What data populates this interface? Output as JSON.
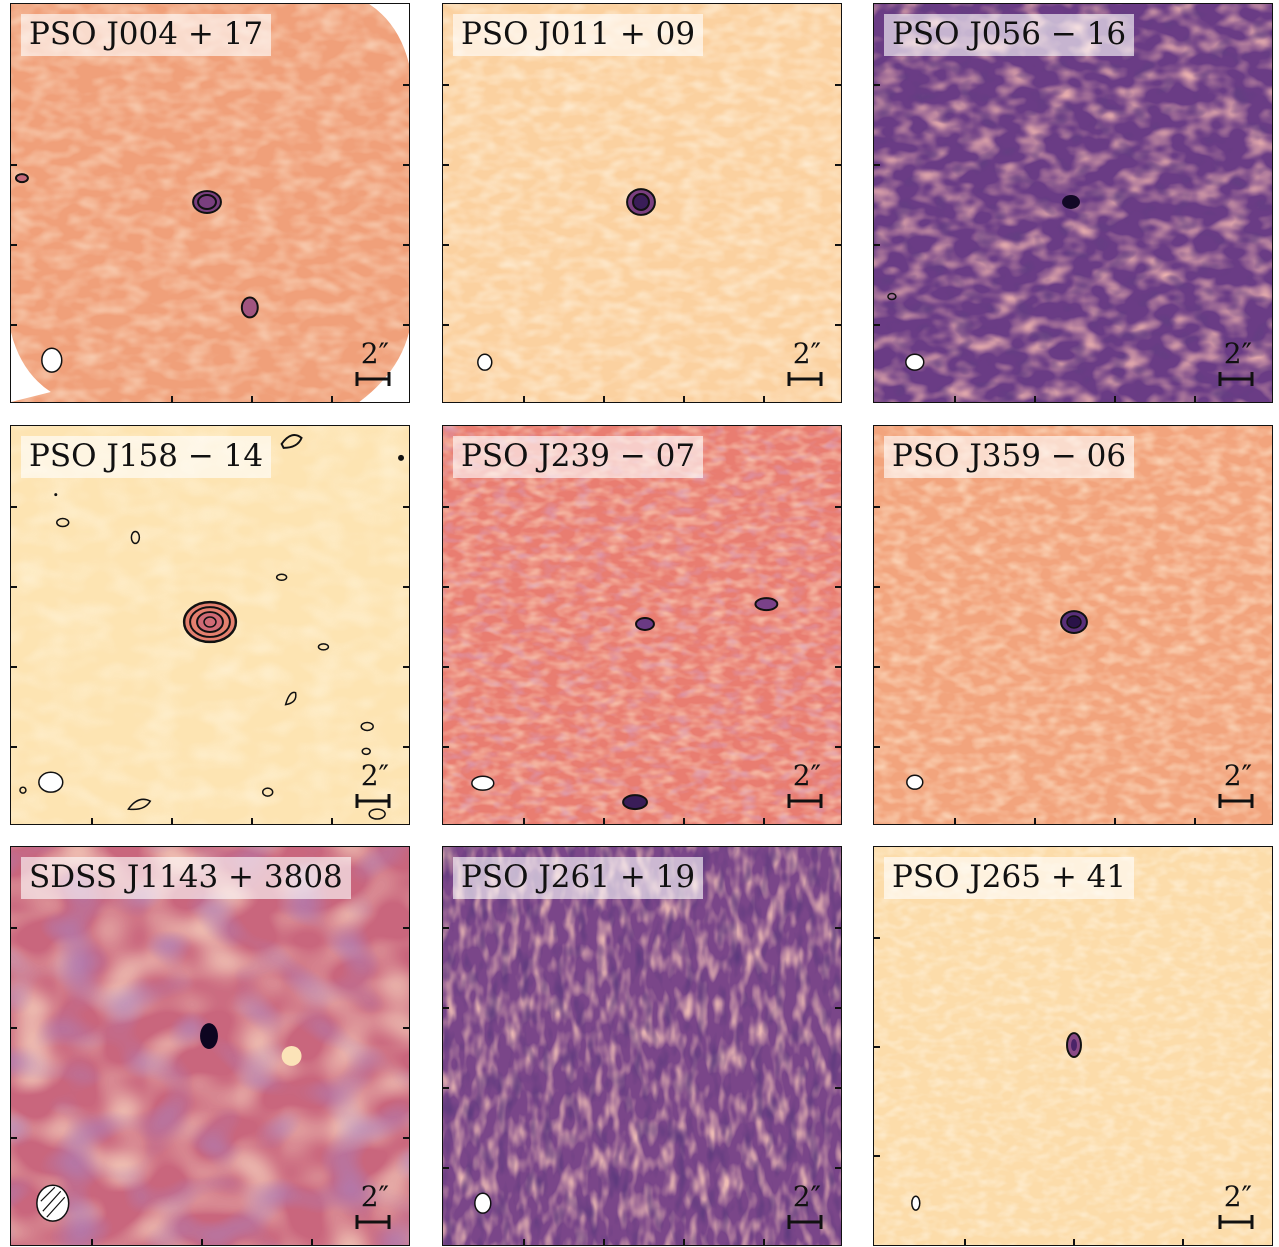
{
  "scale_label": "2″",
  "panels": [
    {
      "label": "PSO J004 + 17",
      "bg": "#f0a07a",
      "noise": "#f7c29a",
      "dark": "#d7756a"
    },
    {
      "label": "PSO J011 + 09",
      "bg": "#fbd6a6",
      "noise": "#fde5bd",
      "dark": "#f3b48c"
    },
    {
      "label": "PSO J056 − 16",
      "bg": "#6e3f86",
      "noise": "#c76b7d",
      "dark": "#2b1448"
    },
    {
      "label": "PSO J158 − 14",
      "bg": "#fde7b6",
      "noise": "#fff0c8",
      "dark": "#f7cf9b"
    },
    {
      "label": "PSO J239 − 07",
      "bg": "#e98073",
      "noise": "#f4a77f",
      "dark": "#b65e7f"
    },
    {
      "label": "PSO J359 − 06",
      "bg": "#f5ad80",
      "noise": "#f9c79a",
      "dark": "#e28677"
    },
    {
      "label": "SDSS J1143 + 3808",
      "bg": "#d0707c",
      "noise": "#f4b28a",
      "dark": "#6a3d85"
    },
    {
      "label": "PSO J261 + 19",
      "bg": "#7b4a8a",
      "noise": "#d98578",
      "dark": "#221040"
    },
    {
      "label": "PSO J265 + 41",
      "bg": "#fde0ae",
      "noise": "#feeac1",
      "dark": "#f8cd9b"
    }
  ]
}
